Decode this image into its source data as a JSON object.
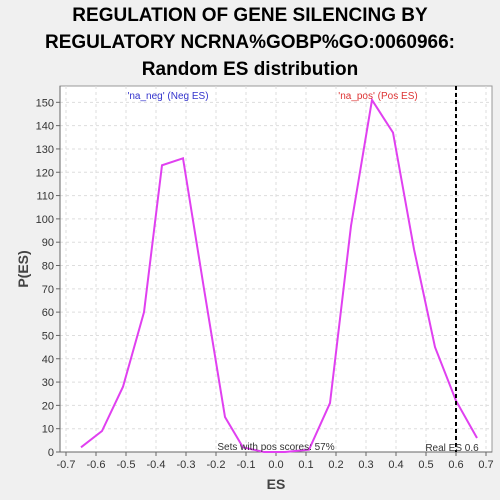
{
  "chart_data": {
    "type": "line",
    "title_lines": [
      "REGULATION OF GENE SILENCING BY",
      "REGULATORY NCRNA%GOBP%GO:0060966:",
      "Random ES distribution"
    ],
    "xlabel": "ES",
    "ylabel": "P(ES)",
    "xlim": [
      -0.72,
      0.72
    ],
    "ylim": [
      0,
      157
    ],
    "xticks": [
      -0.7,
      -0.6,
      -0.5,
      -0.4,
      -0.3,
      -0.2,
      -0.1,
      0.0,
      0.1,
      0.2,
      0.3,
      0.4,
      0.5,
      0.6,
      0.7
    ],
    "xtick_labels": [
      "-0.7",
      "-0.6",
      "-0.5",
      "-0.4",
      "-0.3",
      "-0.2",
      "-0.1",
      "0.0",
      "0.1",
      "0.2",
      "0.3",
      "0.4",
      "0.5",
      "0.6",
      "0.7"
    ],
    "yticks": [
      0,
      10,
      20,
      30,
      40,
      50,
      60,
      70,
      80,
      90,
      100,
      110,
      120,
      130,
      140,
      150
    ],
    "ytick_labels": [
      "0",
      "10",
      "20",
      "30",
      "40",
      "50",
      "60",
      "70",
      "80",
      "90",
      "100",
      "110",
      "120",
      "130",
      "140",
      "150"
    ],
    "grid": true,
    "series": [
      {
        "color": "#e040f0",
        "x": [
          -0.65,
          -0.58,
          -0.51,
          -0.44,
          -0.38,
          -0.31,
          -0.24,
          -0.17,
          -0.11,
          -0.04,
          0.03,
          0.11,
          0.18,
          0.25,
          0.32,
          0.39,
          0.46,
          0.53,
          0.6,
          0.67
        ],
        "y": [
          2,
          9,
          28,
          60,
          123,
          126,
          70,
          15,
          2,
          0,
          0,
          1,
          21,
          97,
          151,
          137,
          87,
          45,
          22,
          6
        ]
      }
    ],
    "real_es": {
      "x": 0.6,
      "label": "Real ES 0.6"
    },
    "annotations": {
      "neg": {
        "text": "'na_neg' (Neg ES)",
        "color": "#3333cc"
      },
      "pos": {
        "text": "'na_pos' (Pos ES)",
        "color": "#dd3333"
      },
      "pos_scores": {
        "text": "Sets with pos scores: 57%",
        "color": "#333333"
      }
    }
  }
}
